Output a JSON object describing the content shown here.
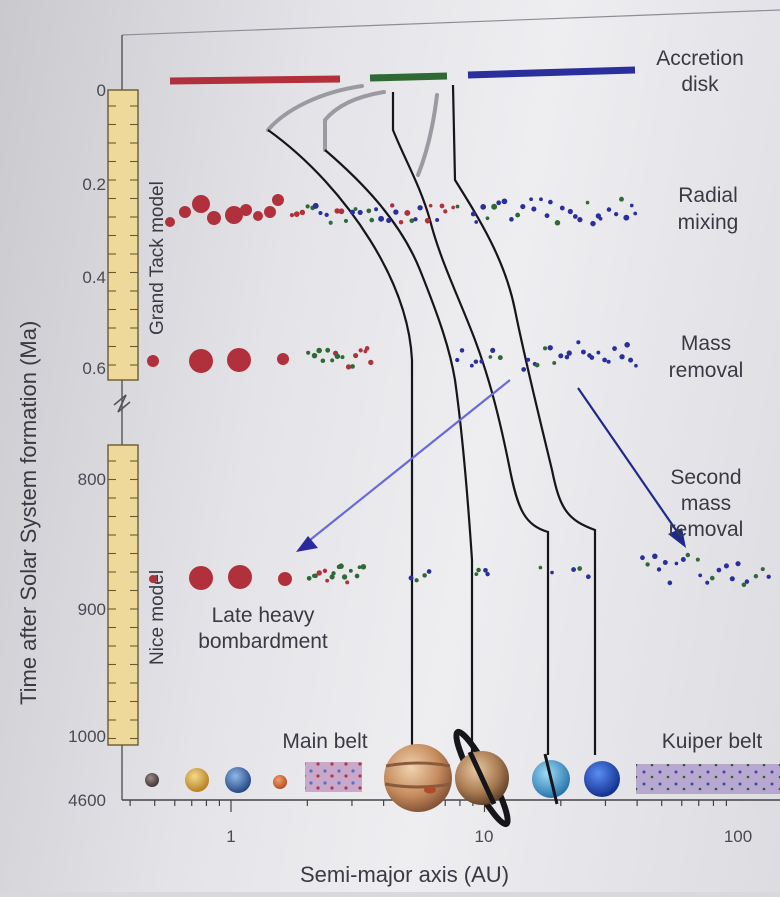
{
  "axes": {
    "ylabel": "Time after Solar System formation (Ma)",
    "xlabel": "Semi-major axis (AU)"
  },
  "y_ticks": [
    "0",
    "0.2",
    "0.4",
    "0.6",
    "800",
    "900",
    "1000",
    "4600"
  ],
  "x_ticks": [
    "1",
    "10",
    "100"
  ],
  "models": {
    "grand_tack": "Grand Tack model",
    "nice": "Nice model"
  },
  "stages": [
    {
      "lines": [
        "Accretion",
        "disk"
      ]
    },
    {
      "lines": [
        "Radial",
        "mixing"
      ]
    },
    {
      "lines": [
        "Mass",
        "removal"
      ]
    },
    {
      "lines": [
        "Second",
        "mass",
        "removal"
      ]
    },
    {
      "lines": [
        "Late heavy",
        "bombardment"
      ]
    }
  ],
  "present": {
    "main_belt": "Main belt",
    "kuiper_belt": "Kuiper belt"
  },
  "colors": {
    "inner_material": "#b0303c",
    "middle_material": "#2f6a35",
    "outer_material": "#2a2f9c",
    "timeline_bar": "#efd99a"
  }
}
